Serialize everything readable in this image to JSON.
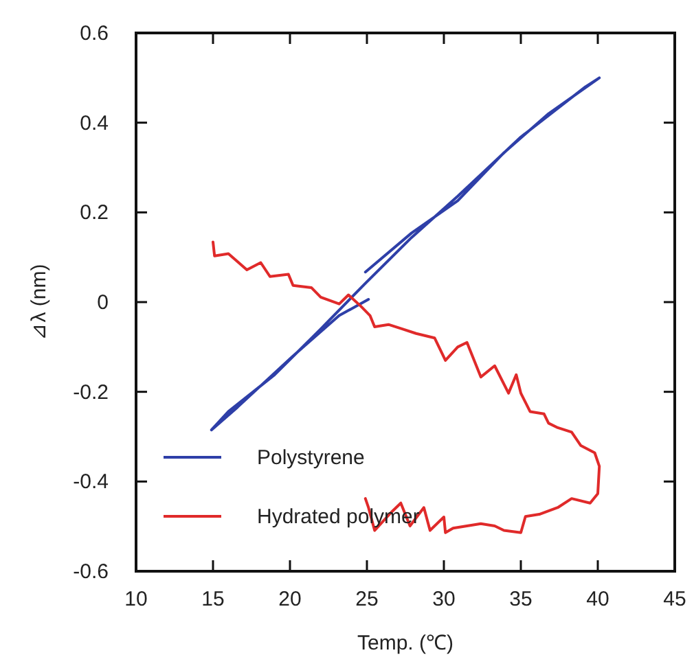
{
  "chart_data": {
    "type": "line",
    "xlabel": "Temp. (℃)",
    "ylabel": "⊿λ (nm)",
    "xlim": [
      10,
      45
    ],
    "ylim": [
      -0.6,
      0.6
    ],
    "xticks": [
      10,
      15,
      20,
      25,
      30,
      35,
      40,
      45
    ],
    "yticks": [
      -0.6,
      -0.4,
      -0.2,
      0,
      0.2,
      0.4,
      0.6
    ],
    "legend": "bottom left",
    "grid": false,
    "marker": "none",
    "line_style": "solid",
    "series": [
      {
        "name": "Polystyrene",
        "color": "#2e3fa8",
        "x": [
          24.9,
          27.9,
          30.9,
          33.9,
          36.8,
          40.1,
          39.2,
          35.0,
          30.9,
          27.9,
          24.9,
          22.0,
          19.0,
          16.0,
          14.9,
          16.6,
          20.2,
          23.2,
          25.1
        ],
        "values": [
          0.067,
          0.154,
          0.226,
          0.333,
          0.42,
          0.5,
          0.48,
          0.368,
          0.236,
          0.144,
          0.042,
          -0.06,
          -0.162,
          -0.244,
          -0.285,
          -0.234,
          -0.12,
          -0.03,
          0.006
        ]
      },
      {
        "name": "Hydrated polymer",
        "color": "#e02a2a",
        "x": [
          15.0,
          15.1,
          16.0,
          16.5,
          17.2,
          18.1,
          18.7,
          19.9,
          20.2,
          21.4,
          22.0,
          23.2,
          23.8,
          24.6,
          25.2,
          25.5,
          26.4,
          27.3,
          28.2,
          29.4,
          30.1,
          30.9,
          31.5,
          32.4,
          33.3,
          34.2,
          34.7,
          35.0,
          35.6,
          36.5,
          36.8,
          37.4,
          38.3,
          38.9,
          39.8,
          40.1,
          40.0,
          39.5,
          38.3,
          37.4,
          36.2,
          35.3,
          35.0,
          33.9,
          33.3,
          32.4,
          31.5,
          30.6,
          30.1,
          30.0,
          29.1,
          28.7,
          27.8,
          27.2,
          26.6,
          25.5,
          25.1,
          24.9
        ],
        "values": [
          0.134,
          0.103,
          0.108,
          0.093,
          0.072,
          0.088,
          0.057,
          0.062,
          0.037,
          0.032,
          0.011,
          -0.004,
          0.016,
          -0.009,
          -0.03,
          -0.055,
          -0.05,
          -0.06,
          -0.07,
          -0.08,
          -0.13,
          -0.1,
          -0.09,
          -0.167,
          -0.142,
          -0.203,
          -0.162,
          -0.203,
          -0.244,
          -0.249,
          -0.27,
          -0.28,
          -0.29,
          -0.32,
          -0.336,
          -0.366,
          -0.427,
          -0.448,
          -0.438,
          -0.458,
          -0.473,
          -0.478,
          -0.514,
          -0.509,
          -0.499,
          -0.494,
          -0.499,
          -0.504,
          -0.514,
          -0.479,
          -0.509,
          -0.458,
          -0.499,
          -0.448,
          -0.468,
          -0.509,
          -0.458,
          -0.438
        ]
      }
    ]
  }
}
